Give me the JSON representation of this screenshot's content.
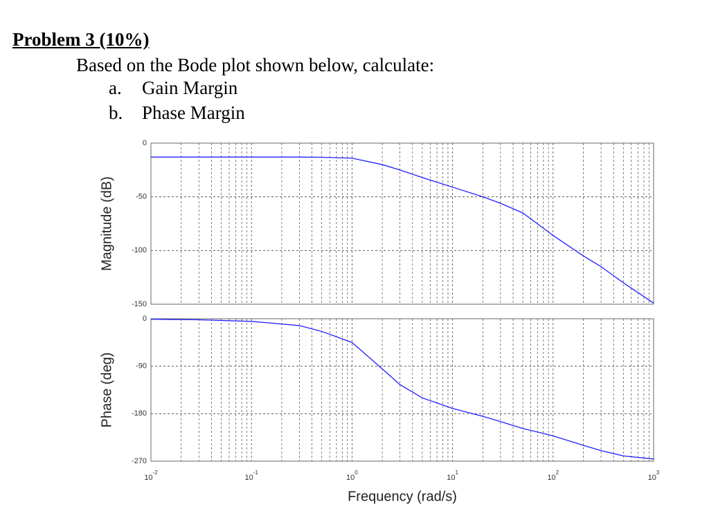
{
  "document": {
    "heading": "Problem 3 (10%)",
    "intro": "Based on the Bode plot shown below, calculate:",
    "items": [
      {
        "marker": "a.",
        "text": "Gain Margin"
      },
      {
        "marker": "b.",
        "text": "Phase Margin"
      }
    ]
  },
  "chart_data": [
    {
      "type": "line",
      "y_label": "Magnitude (dB)",
      "log_x": true,
      "grid": true,
      "x": [
        0.01,
        0.03,
        0.1,
        0.3,
        0.5,
        1,
        2,
        3,
        5,
        10,
        20,
        30,
        50,
        100,
        200,
        300,
        500,
        1000
      ],
      "series": [
        {
          "color": "#1f1fff",
          "values": [
            -13,
            -13,
            -13,
            -13,
            -13.2,
            -14,
            -20,
            -25,
            -32,
            -41,
            -50,
            -56,
            -65,
            -86,
            -105,
            -115,
            -130,
            -149
          ]
        }
      ],
      "xlim": [
        0.01,
        1000
      ],
      "xticks": [
        {
          "value": 0.01,
          "label": "10^-2"
        },
        {
          "value": 0.1,
          "label": "10^-1"
        },
        {
          "value": 1,
          "label": "10^0"
        },
        {
          "value": 10,
          "label": "10^1"
        },
        {
          "value": 100,
          "label": "10^2"
        },
        {
          "value": 1000,
          "label": "10^3"
        }
      ],
      "ylim": [
        -150,
        0
      ],
      "yticks": [
        0,
        -50,
        -100,
        -150
      ]
    },
    {
      "type": "line",
      "y_label": "Phase (deg)",
      "x_label": "Frequency (rad/s)",
      "log_x": true,
      "grid": true,
      "x": [
        0.01,
        0.03,
        0.1,
        0.3,
        0.5,
        1,
        2,
        3,
        5,
        10,
        20,
        30,
        50,
        100,
        200,
        300,
        500,
        1000
      ],
      "series": [
        {
          "color": "#1f1fff",
          "values": [
            -1,
            -2,
            -5,
            -13,
            -24,
            -45,
            -95,
            -125,
            -150,
            -170,
            -185,
            -195,
            -208,
            -222,
            -240,
            -250,
            -260,
            -266
          ]
        }
      ],
      "xlim": [
        0.01,
        1000
      ],
      "xticks": [
        {
          "value": 0.01,
          "label": "10^-2"
        },
        {
          "value": 0.1,
          "label": "10^-1"
        },
        {
          "value": 1,
          "label": "10^0"
        },
        {
          "value": 10,
          "label": "10^1"
        },
        {
          "value": 100,
          "label": "10^2"
        },
        {
          "value": 1000,
          "label": "10^3"
        }
      ],
      "ylim": [
        -270,
        0
      ],
      "yticks": [
        0,
        -90,
        -180,
        -270
      ]
    }
  ]
}
